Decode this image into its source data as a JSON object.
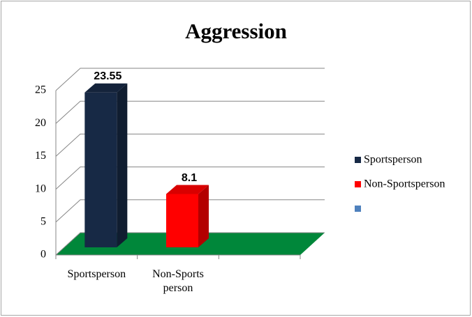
{
  "chart_data": {
    "type": "bar3d",
    "title": "Aggression",
    "categories": [
      "Sportsperson",
      "Non-Sports person"
    ],
    "series": [
      {
        "name": "Sportsperson",
        "color": "#172945",
        "values": [
          23.55,
          null
        ]
      },
      {
        "name": "Non-Sportsperson",
        "color": "#ff0000",
        "values": [
          null,
          8.1
        ]
      },
      {
        "name": null,
        "color": "#4f81bd",
        "values": [
          null,
          null
        ]
      }
    ],
    "floor_color": "#00873a",
    "ylim": [
      0,
      25
    ],
    "yticks": [
      0,
      5,
      10,
      15,
      20,
      25
    ],
    "grid": true,
    "legend": "right"
  }
}
